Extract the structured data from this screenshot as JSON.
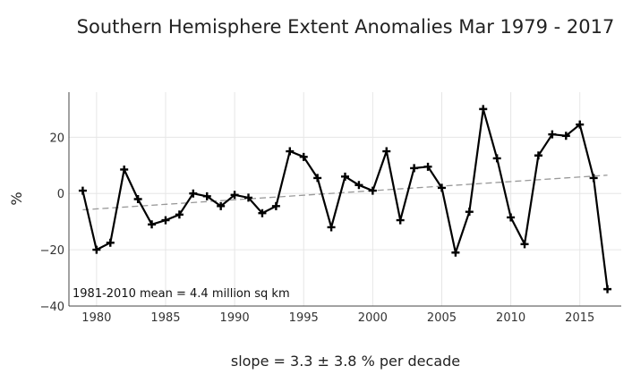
{
  "chart_data": {
    "type": "line",
    "title": "Southern Hemisphere Extent Anomalies Mar 1979 - 2017",
    "xlabel": "slope = 3.3 ± 3.8 % per decade",
    "ylabel": "%",
    "annotation": "1981-2010 mean = 4.4 million sq km",
    "xlim": [
      1978,
      2018
    ],
    "ylim": [
      -40,
      36
    ],
    "x_ticks": [
      1980,
      1985,
      1990,
      1995,
      2000,
      2005,
      2010,
      2015
    ],
    "y_ticks": [
      -40,
      -20,
      0,
      20
    ],
    "y_tick_labels": [
      "−40",
      "−20",
      "0",
      "20"
    ],
    "grid": true,
    "series": [
      {
        "style": "solid line with plus markers",
        "color": "#000000",
        "x": [
          1979,
          1980,
          1981,
          1982,
          1983,
          1984,
          1985,
          1986,
          1987,
          1988,
          1989,
          1990,
          1991,
          1992,
          1993,
          1994,
          1995,
          1996,
          1997,
          1998,
          1999,
          2000,
          2001,
          2002,
          2003,
          2004,
          2005,
          2006,
          2007,
          2008,
          2009,
          2010,
          2011,
          2012,
          2013,
          2014,
          2015,
          2016,
          2017
        ],
        "y": [
          1,
          -20,
          -17.5,
          8.5,
          -2,
          -11,
          -9.5,
          -7.5,
          0,
          -1,
          -4.5,
          -0.5,
          -1.5,
          -7,
          -4.5,
          15,
          13,
          5.5,
          -12,
          6,
          3,
          1,
          15,
          -9.5,
          9,
          9.5,
          2,
          -21,
          -6.5,
          30,
          12.5,
          -8.5,
          -18,
          13.5,
          21,
          20.5,
          24.5,
          5.5,
          -34
        ]
      },
      {
        "style": "dashed trend",
        "color": "#999999",
        "x": [
          1979,
          2017
        ],
        "y": [
          -5.8,
          6.5
        ]
      }
    ]
  }
}
